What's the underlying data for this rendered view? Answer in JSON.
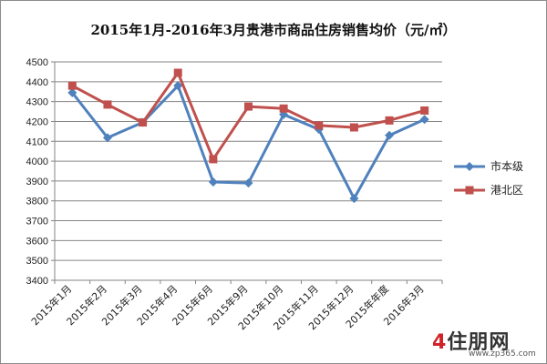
{
  "chart_data": {
    "type": "line",
    "title": "2015年1月-2016年3月贵港市商品住房销售均价（元/㎡）",
    "xlabel": "",
    "ylabel": "",
    "categories": [
      "2015年1月",
      "2015年2月",
      "2015年3月",
      "2015年4月",
      "2015年6月",
      "2015年9月",
      "2015年10月",
      "2015年11月",
      "2015年12月",
      "2015年年度",
      "2016年3月"
    ],
    "ylim": [
      3400,
      4500
    ],
    "yticks": [
      3400,
      3500,
      3600,
      3700,
      3800,
      3900,
      4000,
      4100,
      4200,
      4300,
      4400,
      4500
    ],
    "grid": "horizontal",
    "legend_position": "right",
    "series": [
      {
        "name": "市本级",
        "color": "#4f81bd",
        "marker": "diamond",
        "values": [
          4345,
          4118,
          4195,
          4380,
          3895,
          3890,
          4235,
          4160,
          3812,
          4130,
          4210
        ]
      },
      {
        "name": "港北区",
        "color": "#c0504d",
        "marker": "square",
        "values": [
          4380,
          4285,
          4195,
          4445,
          4010,
          4275,
          4265,
          4180,
          4170,
          4205,
          4255
        ]
      }
    ]
  },
  "watermark": {
    "logo_main": "4",
    "logo_text": "住朋网",
    "url": "www.zp365.com"
  }
}
